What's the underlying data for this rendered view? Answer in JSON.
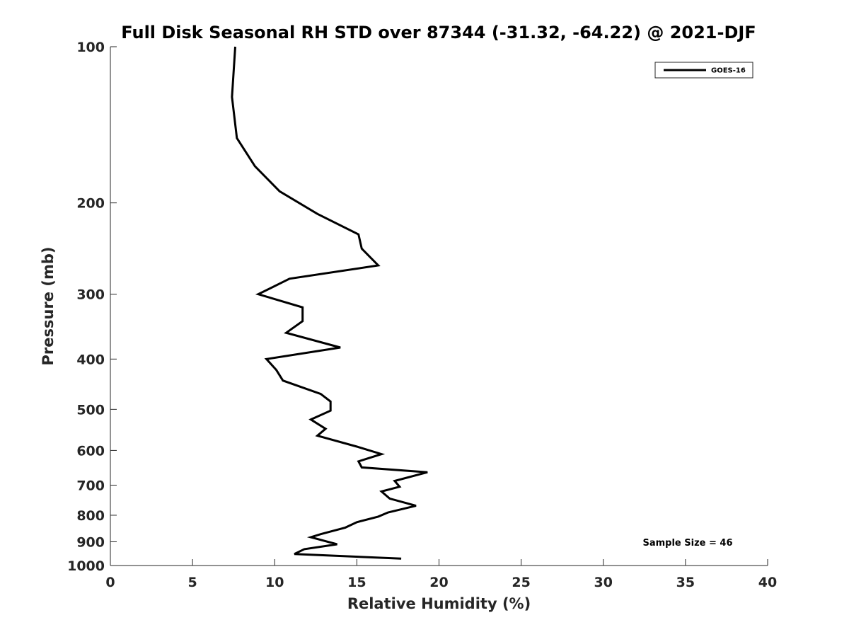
{
  "chart_data": {
    "type": "line",
    "title": "Full Disk Seasonal RH STD over 87344 (-31.32, -64.22) @ 2021-DJF",
    "xlabel": "Relative Humidity (%)",
    "ylabel": "Pressure (mb)",
    "xlim": [
      0,
      40
    ],
    "ylim": [
      100,
      1000
    ],
    "y_scale": "log",
    "y_reversed": true,
    "x_ticks": [
      0,
      5,
      10,
      15,
      20,
      25,
      30,
      35,
      40
    ],
    "y_ticks": [
      100,
      200,
      300,
      400,
      500,
      600,
      700,
      800,
      900,
      1000
    ],
    "grid": false,
    "legend_position": "top-right",
    "annotation": "Sample Size = 46",
    "series": [
      {
        "name": "GOES-16",
        "color": "#000000",
        "points": [
          [
            7.6,
            100
          ],
          [
            7.4,
            125
          ],
          [
            7.7,
            150
          ],
          [
            8.8,
            170
          ],
          [
            10.3,
            190
          ],
          [
            12.6,
            210
          ],
          [
            15.1,
            230
          ],
          [
            15.3,
            245
          ],
          [
            16.3,
            264
          ],
          [
            10.9,
            280
          ],
          [
            9.0,
            300
          ],
          [
            11.7,
            318
          ],
          [
            11.7,
            338
          ],
          [
            10.7,
            356
          ],
          [
            14.0,
            380
          ],
          [
            9.5,
            400
          ],
          [
            10.1,
            420
          ],
          [
            10.5,
            440
          ],
          [
            12.8,
            467
          ],
          [
            13.4,
            483
          ],
          [
            13.4,
            503
          ],
          [
            12.2,
            523
          ],
          [
            13.1,
            545
          ],
          [
            12.6,
            562
          ],
          [
            15.0,
            590
          ],
          [
            16.5,
            610
          ],
          [
            15.1,
            630
          ],
          [
            15.3,
            647
          ],
          [
            19.3,
            661
          ],
          [
            17.3,
            687
          ],
          [
            17.6,
            705
          ],
          [
            16.5,
            720
          ],
          [
            17.0,
            743
          ],
          [
            18.6,
            767
          ],
          [
            16.9,
            790
          ],
          [
            16.3,
            805
          ],
          [
            15.0,
            825
          ],
          [
            14.3,
            845
          ],
          [
            12.8,
            870
          ],
          [
            12.2,
            882
          ],
          [
            13.8,
            910
          ],
          [
            11.8,
            930
          ],
          [
            11.2,
            950
          ],
          [
            17.7,
            970
          ]
        ]
      }
    ]
  }
}
